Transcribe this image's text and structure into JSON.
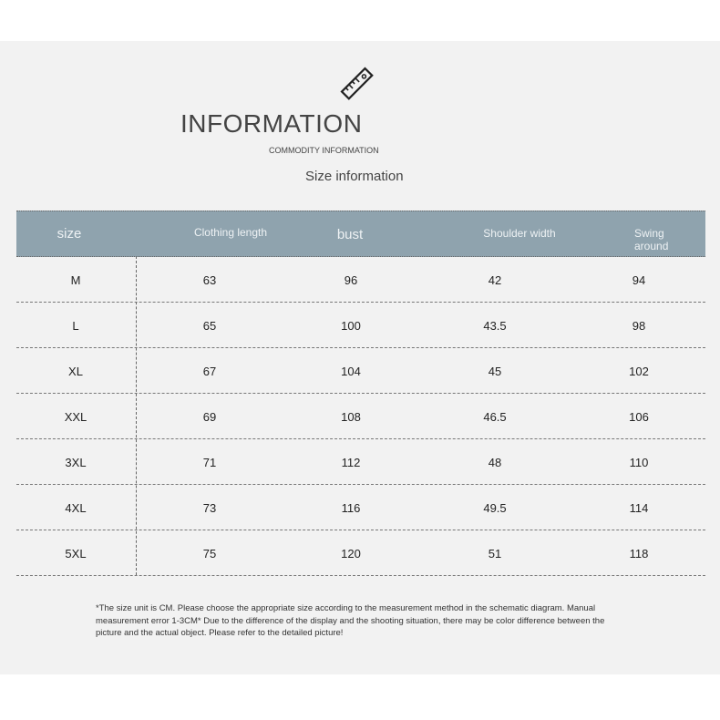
{
  "header": {
    "title": "INFORMATION",
    "subtitle": "COMMODITY INFORMATION",
    "section": "Size information",
    "icon": "ruler-icon"
  },
  "table": {
    "header_color": "#8fa3ae",
    "columns": [
      "size",
      "Clothing length",
      "bust",
      "Shoulder width",
      "Swing around"
    ],
    "rows": [
      [
        "M",
        "63",
        "96",
        "42",
        "94"
      ],
      [
        "L",
        "65",
        "100",
        "43.5",
        "98"
      ],
      [
        "XL",
        "67",
        "104",
        "45",
        "102"
      ],
      [
        "XXL",
        "69",
        "108",
        "46.5",
        "106"
      ],
      [
        "3XL",
        "71",
        "112",
        "48",
        "110"
      ],
      [
        "4XL",
        "73",
        "116",
        "49.5",
        "114"
      ],
      [
        "5XL",
        "75",
        "120",
        "51",
        "118"
      ]
    ]
  },
  "note": "*The size unit is CM. Please choose the appropriate size according to the measurement method in the schematic diagram. Manual measurement error 1-3CM* Due to the difference of the display and the shooting situation, there may be color difference between the picture and the actual object. Please refer to the detailed picture!"
}
